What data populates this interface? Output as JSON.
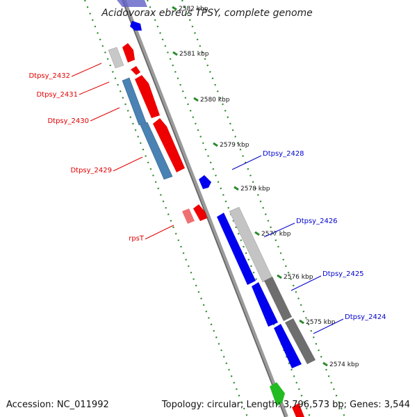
{
  "title": "Acidovorax ebreus TPSY, complete genome",
  "footer": {
    "accession": "Accession: NC_011992",
    "topology": "Topology: circular; Length: 3,796,573 bp; Genes: 3,544"
  },
  "ticks": [
    {
      "label": "2582 kbp",
      "kbp": 2582
    },
    {
      "label": "2581 kbp",
      "kbp": 2581
    },
    {
      "label": "2580 kbp",
      "kbp": 2580
    },
    {
      "label": "2579 kbp",
      "kbp": 2579
    },
    {
      "label": "2578 kbp",
      "kbp": 2578
    },
    {
      "label": "2577 kbp",
      "kbp": 2577
    },
    {
      "label": "2576 kbp",
      "kbp": 2576
    },
    {
      "label": "2575 kbp",
      "kbp": 2575
    },
    {
      "label": "2574 kbp",
      "kbp": 2574
    }
  ],
  "gene_labels": [
    {
      "text": "Dtpsy_2432",
      "color": "#e00000"
    },
    {
      "text": "Dtpsy_2431",
      "color": "#e00000"
    },
    {
      "text": "Dtpsy_2430",
      "color": "#e00000"
    },
    {
      "text": "Dtpsy_2429",
      "color": "#e00000"
    },
    {
      "text": "rpsT",
      "color": "#e00000"
    },
    {
      "text": "Dtpsy_2428",
      "color": "#0000cc"
    },
    {
      "text": "Dtpsy_2426",
      "color": "#0000cc"
    },
    {
      "text": "Dtpsy_2425",
      "color": "#0000cc"
    },
    {
      "text": "Dtpsy_2424",
      "color": "#0000cc"
    }
  ],
  "colors": {
    "forward_cds": "#ee0000",
    "reverse_cds": "#0000ee",
    "rrna_blue": "#4a82b4",
    "gray_feature": "#6e6e6e",
    "light_gray_feature": "#c4c4c4",
    "green_feature": "#22bb22",
    "backbone": "#7a7a7a",
    "dotted_guides": "#2a8a2a"
  }
}
